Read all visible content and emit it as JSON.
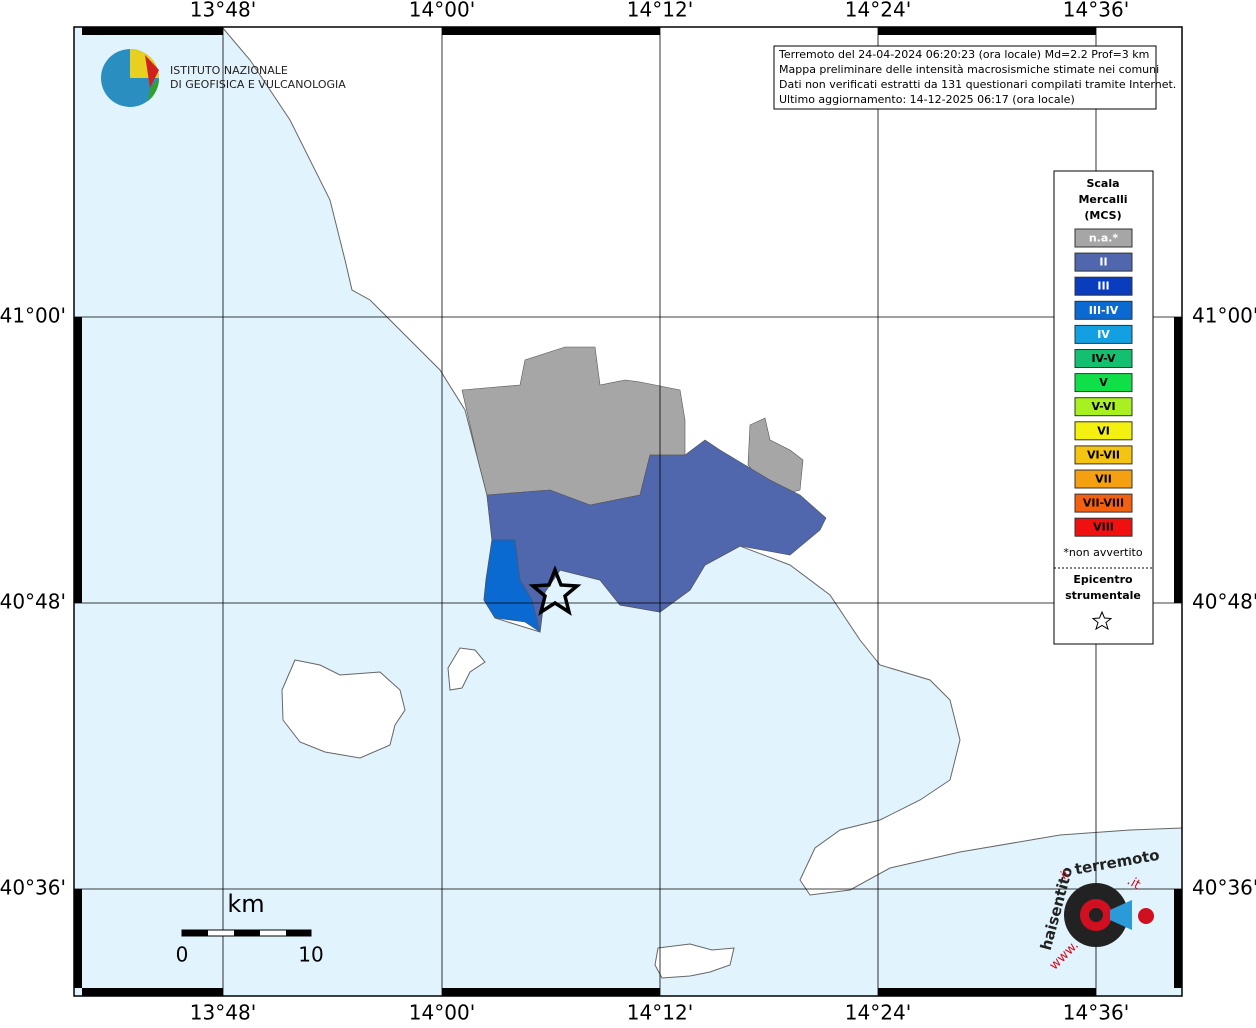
{
  "map": {
    "lon_ticks": [
      "13°48'",
      "14°00'",
      "14°12'",
      "14°24'",
      "14°36'"
    ],
    "lat_ticks": [
      "41°00'",
      "40°48'",
      "40°36'"
    ],
    "info": [
      "Terremoto del 24-04-2024 06:20:23 (ora locale) Md=2.2 Prof=3 km",
      "Mappa preliminare delle intensità macrosismiche stimate nei comuni",
      "Dati non verificati estratti da 131 questionari compilati tramite Internet.",
      "Ultimo aggiornamento: 14-12-2025 06:17 (ora locale)"
    ],
    "logo": [
      "ISTITUTO NAZIONALE",
      "DI GEOFISICA E VULCANOLOGIA"
    ],
    "legend": {
      "title": [
        "Scala",
        "Mercalli",
        "(MCS)"
      ],
      "items": [
        {
          "label": "n.a.*",
          "color": "#a6a6a6"
        },
        {
          "label": "II",
          "color": "#5066ad"
        },
        {
          "label": "III",
          "color": "#0a3cbe"
        },
        {
          "label": "III-IV",
          "color": "#0a6ad2"
        },
        {
          "label": "IV",
          "color": "#12a0e2"
        },
        {
          "label": "IV-V",
          "color": "#14c070"
        },
        {
          "label": "V",
          "color": "#10e048"
        },
        {
          "label": "V-VI",
          "color": "#a8f020"
        },
        {
          "label": "VI",
          "color": "#f4f010"
        },
        {
          "label": "VI-VII",
          "color": "#f4c410"
        },
        {
          "label": "VII",
          "color": "#f4a010"
        },
        {
          "label": "VII-VIII",
          "color": "#f46010"
        },
        {
          "label": "VIII",
          "color": "#f01010"
        }
      ],
      "note": "*non avvertito",
      "epicenter": [
        "Epicentro",
        "strumentale"
      ]
    },
    "scale": {
      "unit": "km",
      "start": "0",
      "end": "10"
    },
    "site": [
      "www.",
      "haisentito",
      "il",
      "terremoto",
      ".it"
    ]
  }
}
